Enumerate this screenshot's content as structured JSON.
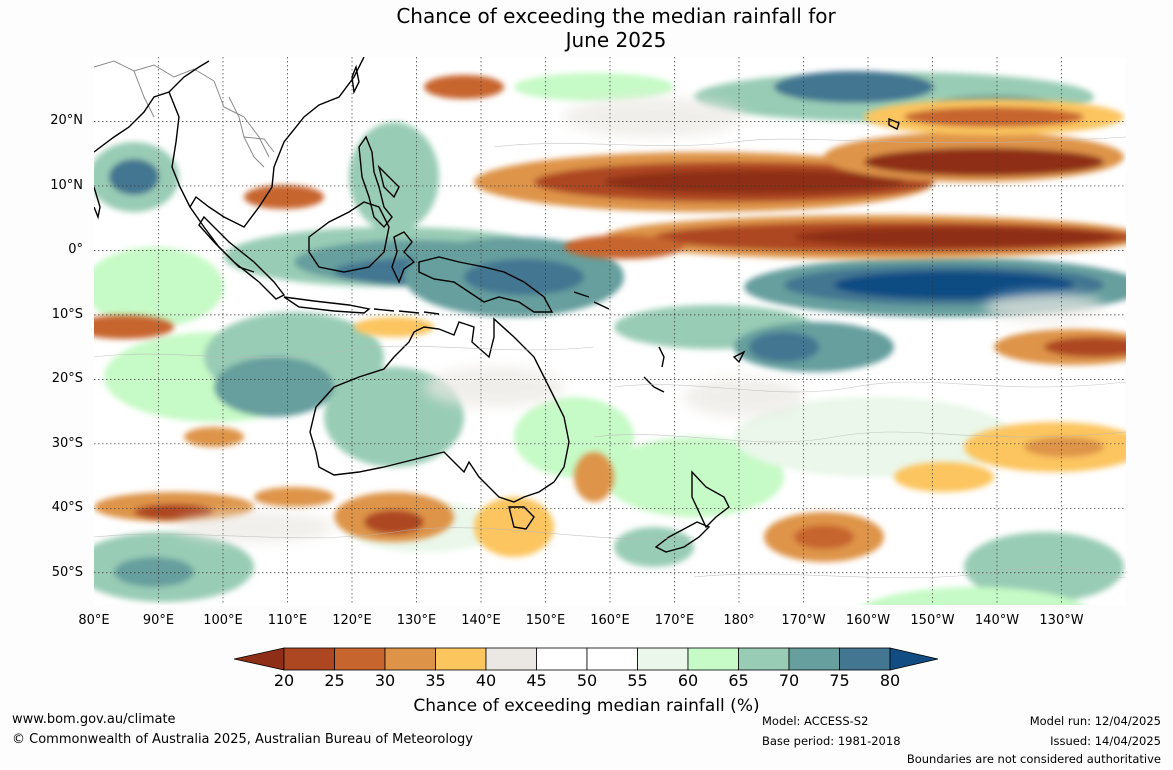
{
  "title": {
    "line1": "Chance of exceeding the median rainfall for",
    "line2": "June 2025"
  },
  "map": {
    "lat_labels": [
      "20°N",
      "10°N",
      "0°",
      "10°S",
      "20°S",
      "30°S",
      "40°S",
      "50°S"
    ],
    "lat_values": [
      20,
      10,
      0,
      -10,
      -20,
      -30,
      -40,
      -50
    ],
    "lat_range": [
      -55,
      30
    ],
    "lon_labels": [
      "80°E",
      "90°E",
      "100°E",
      "110°E",
      "120°E",
      "130°E",
      "140°E",
      "150°E",
      "160°E",
      "170°E",
      "180°",
      "170°W",
      "160°W",
      "150°W",
      "140°W",
      "130°W"
    ],
    "lon_values": [
      80,
      90,
      100,
      110,
      120,
      130,
      140,
      150,
      160,
      170,
      180,
      190,
      200,
      210,
      220,
      230
    ],
    "lon_range": [
      80,
      240
    ],
    "gridlines": true,
    "gridline_style": "dotted",
    "coastline_color": "#000000",
    "border_color": "#888888"
  },
  "colorbar": {
    "label": "Chance of exceeding median rainfall (%)",
    "ticks": [
      "20",
      "25",
      "30",
      "35",
      "40",
      "45",
      "50",
      "55",
      "60",
      "65",
      "70",
      "75",
      "80"
    ],
    "tick_values": [
      20,
      25,
      30,
      35,
      40,
      45,
      50,
      55,
      60,
      65,
      70,
      75,
      80
    ],
    "colors": [
      "#8e2e16",
      "#ad4722",
      "#c7652e",
      "#de9448",
      "#fcc55e",
      "#ebe8e3",
      "#ffffff",
      "#ffffff",
      "#eaf7ea",
      "#c6fac6",
      "#99ccb5",
      "#669f9e",
      "#427691",
      "#114c83"
    ]
  },
  "footer": {
    "website": "www.bom.gov.au/climate",
    "copyright": "© Commonwealth of Australia 2025, Australian Bureau of Meteorology",
    "model": "Model: ACCESS-S2",
    "base_period": "Base period: 1981-2018",
    "model_run": "Model run: 12/04/2025",
    "issued": "Issued: 14/04/2025",
    "disclaimer": "Boundaries are not considered authoritative"
  }
}
